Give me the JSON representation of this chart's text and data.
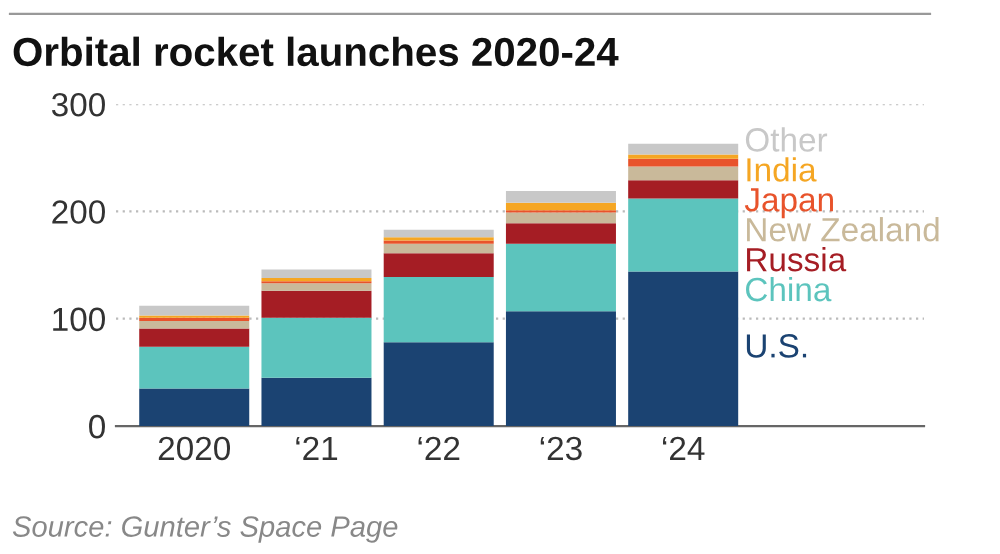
{
  "chart_data": {
    "type": "bar",
    "stacked": true,
    "title": "Orbital rocket launches 2020-24",
    "categories": [
      "2020",
      "‘21",
      "‘22",
      "‘23",
      "‘24"
    ],
    "series": [
      {
        "name": "U.S.",
        "color": "#1b4372",
        "values": [
          35,
          45,
          78,
          107,
          144
        ]
      },
      {
        "name": "China",
        "color": "#5cc4bd",
        "values": [
          39,
          56,
          61,
          63,
          68
        ]
      },
      {
        "name": "Russia",
        "color": "#a51d24",
        "values": [
          17,
          25,
          22,
          19,
          17
        ]
      },
      {
        "name": "New Zealand",
        "color": "#c9b99a",
        "values": [
          7,
          7,
          9,
          10,
          13
        ]
      },
      {
        "name": "Japan",
        "color": "#e8532b",
        "values": [
          3,
          2,
          3,
          2,
          7
        ]
      },
      {
        "name": "India",
        "color": "#f5a623",
        "values": [
          2,
          3,
          3,
          7,
          4
        ]
      },
      {
        "name": "Other",
        "color": "#c8c8c8",
        "values": [
          9,
          8,
          7,
          11,
          10
        ]
      }
    ],
    "ylim": [
      0,
      300
    ],
    "yticks": [
      0,
      100,
      200,
      300
    ],
    "grid": "y",
    "legend": "right",
    "annotations": [
      "Source: Gunter’s Space Page"
    ]
  }
}
